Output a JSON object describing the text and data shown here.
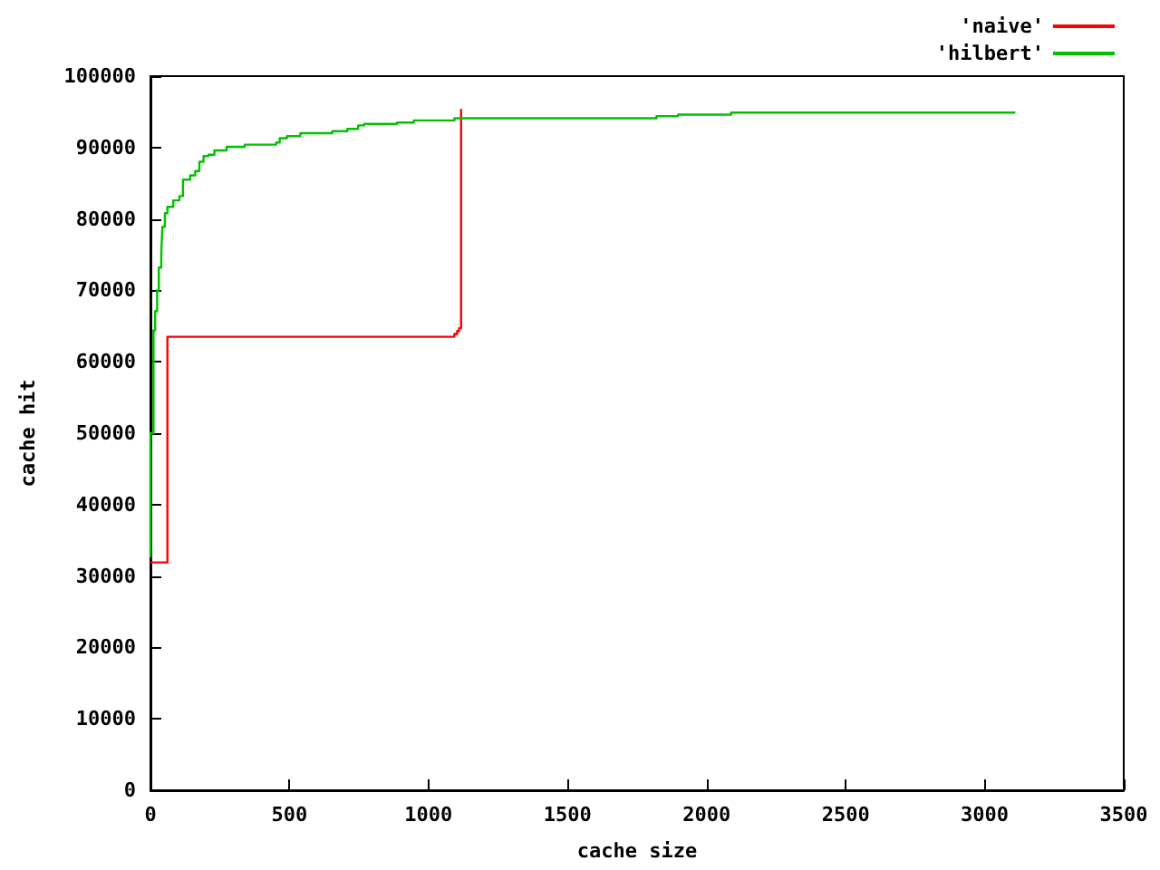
{
  "chart_data": {
    "type": "step",
    "xlabel": "cache size",
    "ylabel": "cache hit",
    "xlim": [
      0,
      3500
    ],
    "xticks": [
      0,
      500,
      1000,
      1500,
      2000,
      2500,
      3000,
      3500
    ],
    "ylim": [
      0,
      100000
    ],
    "yticks": [
      0,
      10000,
      20000,
      30000,
      40000,
      50000,
      60000,
      70000,
      80000,
      90000,
      100000
    ],
    "grid": false,
    "legend": "top right",
    "marker": "none",
    "line_style": "solid",
    "series": [
      {
        "name": "'naive'",
        "color": "#ff0000",
        "x": [
          0,
          61,
          61,
          1084,
          1093,
          1103,
          1110,
          1117,
          1117
        ],
        "values": [
          31900,
          31900,
          63500,
          63500,
          63900,
          64300,
          64700,
          65100,
          95400
        ]
      },
      {
        "name": "'hilbert'",
        "color": "#00c000",
        "x": [
          0,
          0,
          11,
          17,
          24,
          30,
          39,
          43,
          52,
          61,
          82,
          104,
          117,
          143,
          161,
          176,
          191,
          209,
          230,
          274,
          339,
          452,
          465,
          491,
          539,
          654,
          708,
          747,
          769,
          887,
          947,
          1093,
          1820,
          1897,
          2088,
          3110
        ],
        "values": [
          32600,
          50000,
          64400,
          67100,
          70000,
          73200,
          75300,
          78900,
          80800,
          81700,
          82600,
          83200,
          85500,
          86100,
          86700,
          88000,
          88800,
          89000,
          89600,
          90100,
          90400,
          90700,
          91300,
          91600,
          92000,
          92300,
          92600,
          93100,
          93300,
          93500,
          93800,
          94100,
          94400,
          94600,
          94900,
          94900
        ]
      }
    ]
  }
}
